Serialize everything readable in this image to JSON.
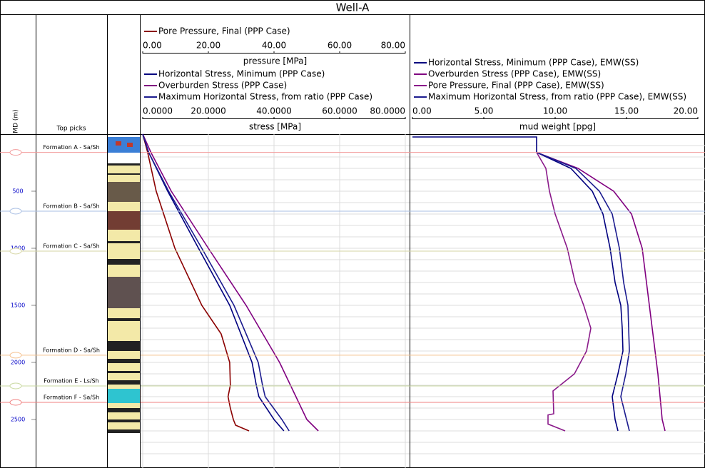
{
  "chart_data": {
    "type": "well-log",
    "title": "Well-A",
    "y_label": "MD (m)",
    "ylim": [
      0,
      2900
    ],
    "yticks": [
      500,
      1000,
      1500,
      2000,
      2500
    ],
    "ygrid": [
      100,
      200,
      300,
      400,
      500,
      600,
      700,
      800,
      900,
      1000,
      1100,
      1200,
      1300,
      1400,
      1500,
      1600,
      1700,
      1800,
      1900,
      2000,
      2100,
      2200,
      2300,
      2400,
      2500,
      2600,
      2700,
      2800
    ],
    "tops": {
      "label": "Top picks",
      "items": [
        {
          "name": "Formation A - Sa/Sh",
          "depth": 160,
          "color": "#f29a9a"
        },
        {
          "name": "Formation B - Sa/Sh",
          "depth": 675,
          "color": "#a9bfe3"
        },
        {
          "name": "Formation C - Sa/Sh",
          "depth": 1025,
          "color": "#d6d6a3"
        },
        {
          "name": "Formation D - Sa/Sh",
          "depth": 1937,
          "color": "#f5c08e"
        },
        {
          "name": "Formation E - Ls/Sh",
          "depth": 2206,
          "color": "#c9d9a0"
        },
        {
          "name": "Formation F - Sa/Sh",
          "depth": 2350,
          "color": "#f08080"
        }
      ]
    },
    "tracks": [
      {
        "grid": true,
        "axes": [
          {
            "label": "pressure [MPa]",
            "xlim": [
              0,
              80
            ],
            "xticks": [
              {
                "value": 0,
                "label": "0.00"
              },
              {
                "value": 20,
                "label": "20.00"
              },
              {
                "value": 40,
                "label": "40.00"
              },
              {
                "value": 60,
                "label": "60.00"
              },
              {
                "value": 80,
                "label": "80.00"
              }
            ]
          },
          {
            "label": "stress [MPa]",
            "xlim": [
              0,
              80
            ],
            "xticks": [
              {
                "value": 0,
                "label": "0.0000"
              },
              {
                "value": 20,
                "label": "20.0000"
              },
              {
                "value": 40,
                "label": "40.0000"
              },
              {
                "value": 60,
                "label": "60.0000"
              },
              {
                "value": 80,
                "label": "80.0000"
              }
            ]
          }
        ],
        "series": [
          {
            "name": "Pore Pressure, Final (PPP Case)",
            "color": "#8b0000",
            "axis": 0,
            "depth": [
              0,
              160,
              500,
              1000,
              1500,
              1750,
              2000,
              2200,
              2300,
              2400,
              2500,
              2550,
              2600
            ],
            "values": [
              0,
              1.5,
              4.1,
              9.8,
              18,
              23.9,
              26.5,
              26.7,
              26,
              26.7,
              27.6,
              28.3,
              32.4
            ]
          },
          {
            "name": "Horizontal Stress, Minimum (PPP Case)",
            "color": "#00007f",
            "axis": 1,
            "depth": [
              0,
              160,
              500,
              1000,
              1500,
              2000,
              2200,
              2300,
              2500,
              2600
            ],
            "values": [
              0,
              1.8,
              7.6,
              17,
              26.5,
              33.3,
              34.6,
              35.4,
              40,
              43
            ]
          },
          {
            "name": "Overburden Stress (PPP Case)",
            "color": "#800080",
            "axis": 1,
            "depth": [
              0,
              160,
              500,
              1000,
              1500,
              2000,
              2500,
              2600
            ],
            "values": [
              0,
              2.5,
              8.7,
              20,
              31.5,
              41.7,
              50,
              53.5
            ]
          },
          {
            "name": "Maximum Horizontal Stress, from ratio (PPP Case)",
            "color": "#1c1c8f",
            "axis": 1,
            "depth": [
              0,
              160,
              500,
              1000,
              1500,
              2000,
              2200,
              2300,
              2500,
              2600
            ],
            "values": [
              0,
              1.8,
              7.9,
              18,
              27.8,
              35.2,
              36.5,
              37.3,
              42.4,
              44.6
            ]
          }
        ]
      },
      {
        "grid": false,
        "axes": [
          {
            "label": "mud weight [ppg]",
            "xlim": [
              0,
              20
            ],
            "xticks": [
              {
                "value": 0,
                "label": "0.00"
              },
              {
                "value": 5,
                "label": "5.00"
              },
              {
                "value": 10,
                "label": "10.00"
              },
              {
                "value": 15,
                "label": "15.00"
              },
              {
                "value": 20,
                "label": "20.00"
              }
            ]
          }
        ],
        "series": [
          {
            "name": "Horizontal Stress, Minimum (PPP Case), EMW(SS)",
            "color": "#00007f",
            "axis": 0,
            "depth": [
              25,
              25,
              160,
              300,
              500,
              700,
              1000,
              1300,
              1500,
              1700,
              1900,
              2100,
              2300,
              2500,
              2600
            ],
            "values": [
              0,
              8.7,
              8.7,
              11.1,
              12.6,
              13.35,
              13.85,
              14.2,
              14.6,
              14.7,
              14.75,
              14.4,
              14,
              14.2,
              14.4
            ]
          },
          {
            "name": "Overburden Stress (PPP Case), EMW(SS)",
            "color": "#800080",
            "axis": 0,
            "depth": [
              160,
              300,
              500,
              700,
              1000,
              1300,
              1500,
              1700,
              1900,
              2100,
              2300,
              2500,
              2600
            ],
            "values": [
              8.7,
              11.6,
              14.1,
              15.35,
              16.1,
              16.4,
              16.6,
              16.8,
              17,
              17.2,
              17.35,
              17.5,
              17.7
            ]
          },
          {
            "name": "Pore Pressure, Final (PPP Case), EMW(SS)",
            "color": "#8a1a8a",
            "axis": 0,
            "depth": [
              160,
              300,
              500,
              700,
              1000,
              1300,
              1500,
              1700,
              1900,
              2100,
              2250,
              2450,
              2460,
              2540,
              2600
            ],
            "values": [
              8.7,
              9.35,
              9.6,
              10,
              10.85,
              11.4,
              12,
              12.5,
              12.2,
              11.35,
              9.85,
              9.9,
              9.5,
              9.5,
              10.7
            ]
          },
          {
            "name": "Maximum Horizontal Stress, from ratio (PPP Case), EMW(SS)",
            "color": "#1c1c8f",
            "axis": 0,
            "depth": [
              160,
              300,
              500,
              700,
              1000,
              1300,
              1500,
              1700,
              1900,
              2100,
              2300,
              2500,
              2600
            ],
            "values": [
              8.7,
              11.45,
              13.1,
              14,
              14.5,
              14.8,
              15.1,
              15.15,
              15.2,
              14.95,
              14.6,
              15,
              15.2
            ]
          }
        ]
      }
    ]
  }
}
